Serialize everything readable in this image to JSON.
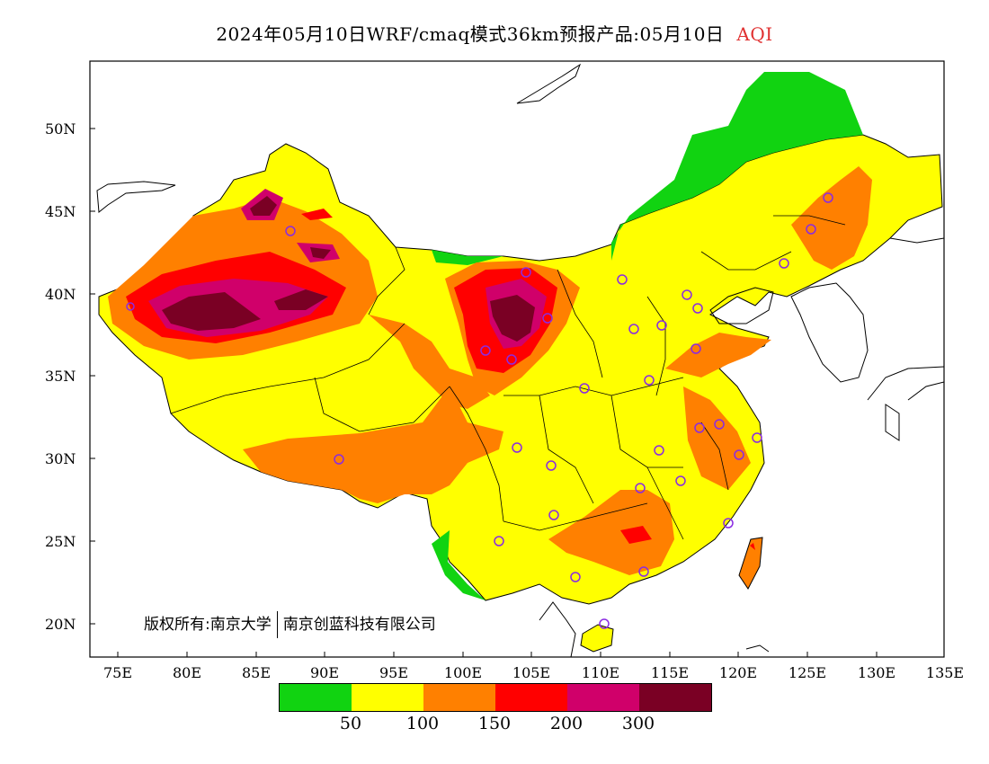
{
  "title": {
    "main": "2024年05月10日WRF/cmaq模式36km预报产品:05月10日",
    "variable": "AQI"
  },
  "lat_labels": [
    "50N",
    "45N",
    "40N",
    "35N",
    "30N",
    "25N",
    "20N"
  ],
  "lon_labels": [
    "75E",
    "80E",
    "85E",
    "90E",
    "95E",
    "100E",
    "105E",
    "110E",
    "115E",
    "120E",
    "125E",
    "130E",
    "135E"
  ],
  "copyright": {
    "left": "版权所有:南京大学",
    "right": "南京创蓝科技有限公司"
  },
  "legend": {
    "colors": [
      "#11d311",
      "#ffff00",
      "#ff8000",
      "#ff0000",
      "#d0006a",
      "#7a0024"
    ],
    "tick_labels": [
      "50",
      "100",
      "150",
      "200",
      "300"
    ]
  },
  "colors": {
    "green": "#11d311",
    "yellow": "#ffff00",
    "orange": "#ff8000",
    "red": "#ff0000",
    "magenta": "#d0006a",
    "maroon": "#7a0024",
    "station": "#8a2be2"
  }
}
